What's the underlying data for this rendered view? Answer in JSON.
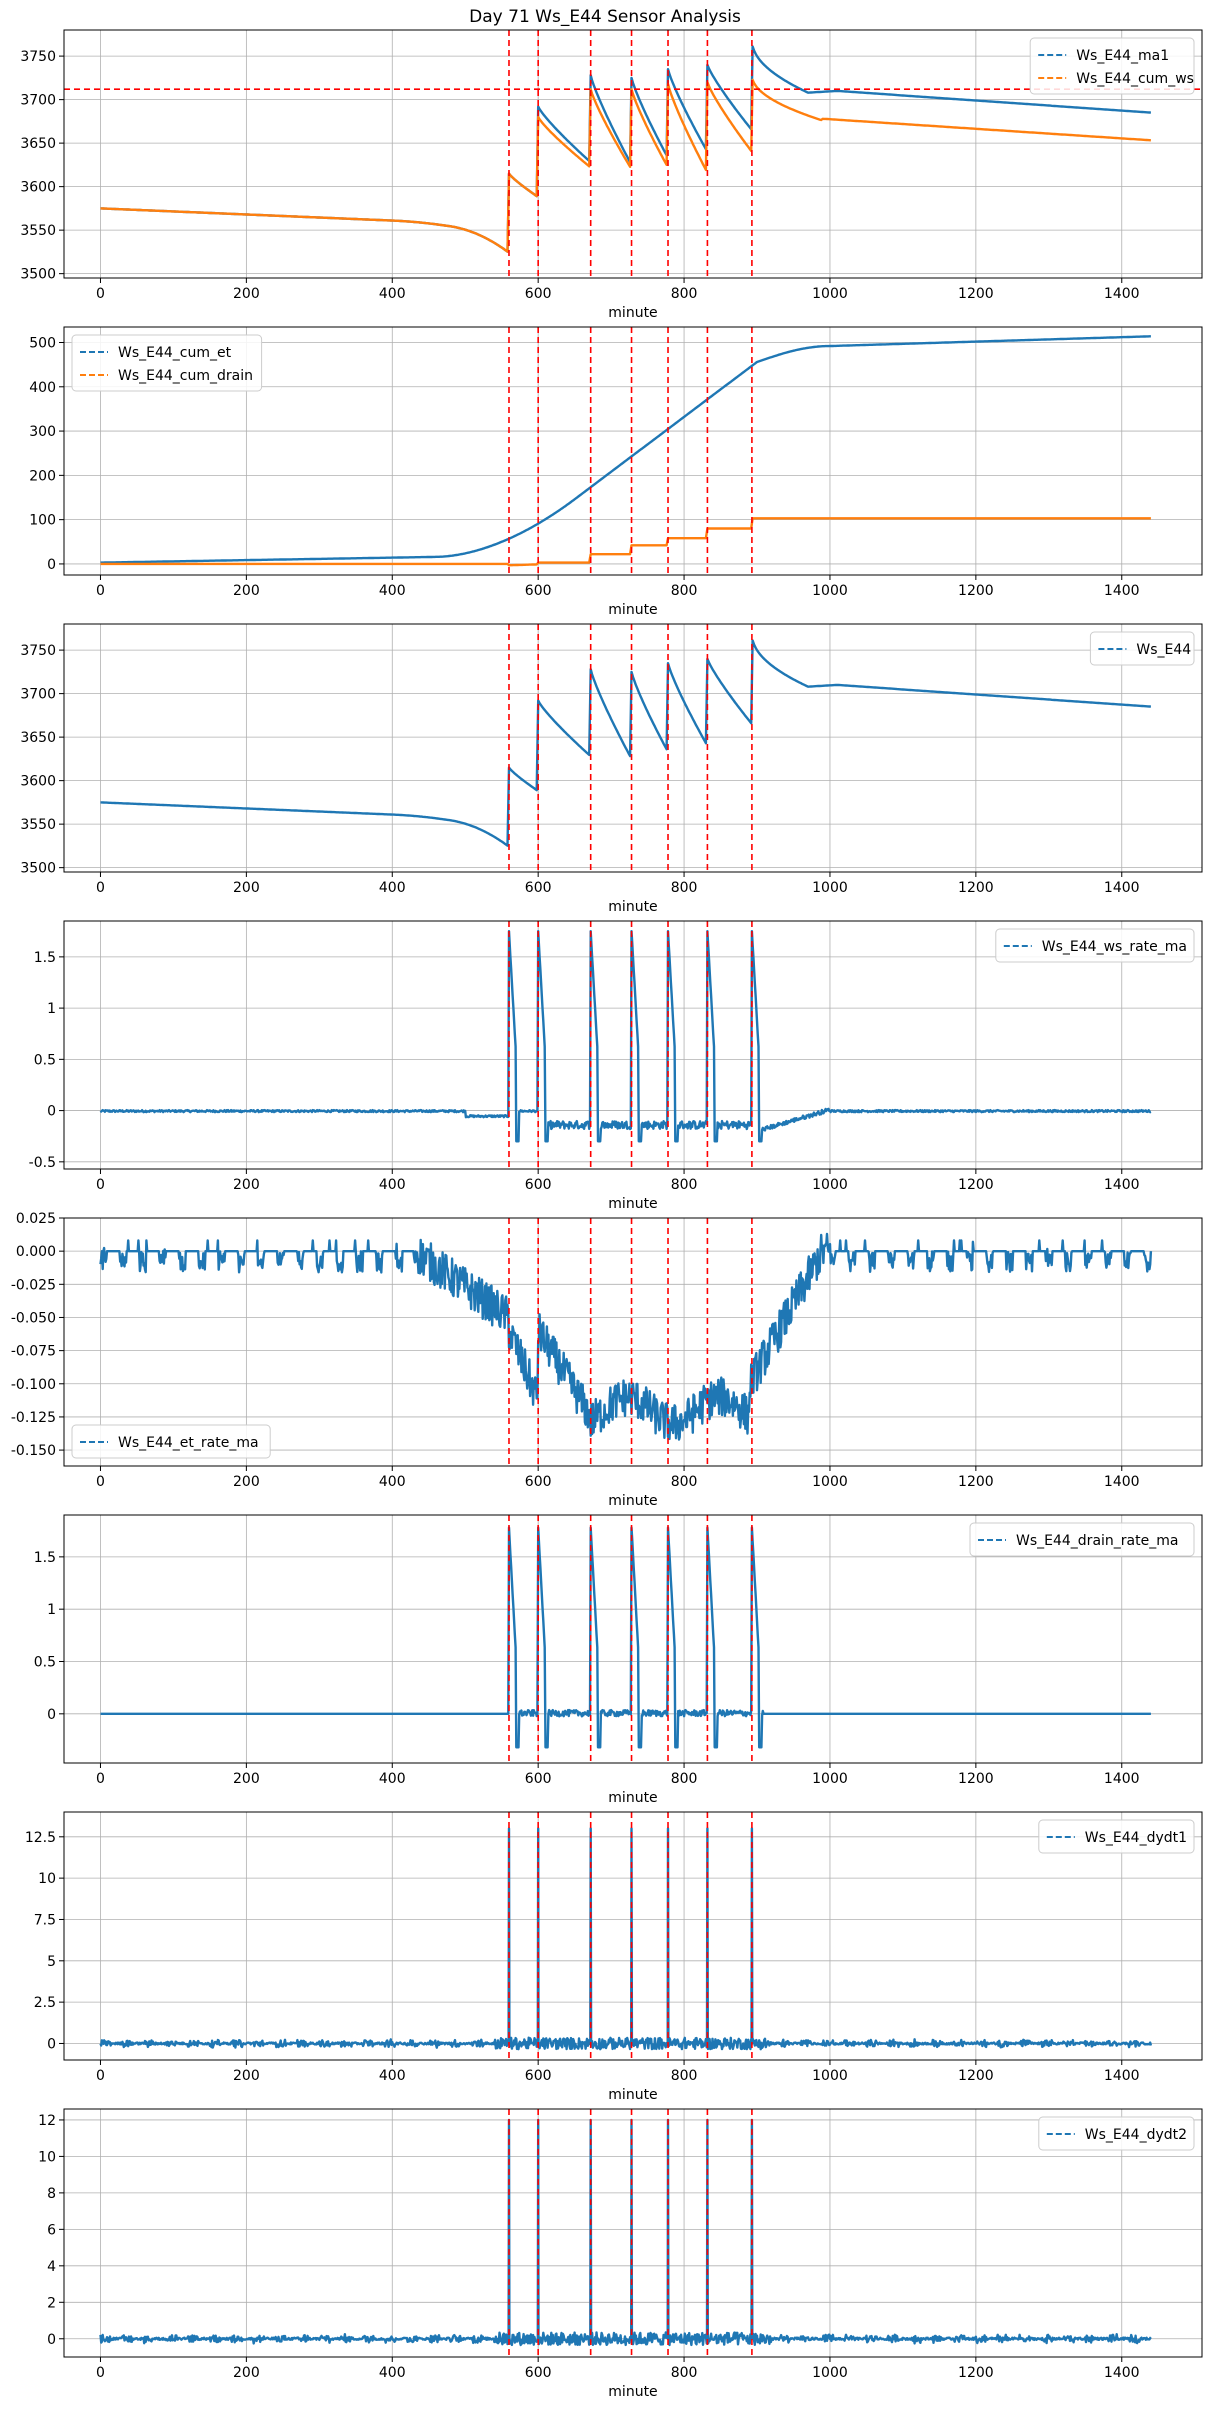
{
  "figure": {
    "title": "Day 71 Ws_E44 Sensor Analysis"
  },
  "colors": {
    "blue": "#1f77b4",
    "orange": "#ff7f0e",
    "red": "#ff0000",
    "grid": "#b0b0b0"
  },
  "events": [
    560,
    600,
    672,
    728,
    778,
    832,
    893
  ],
  "chart_data": [
    {
      "type": "line",
      "xlabel": "minute",
      "xlim": [
        -50,
        1510
      ],
      "xticks": [
        0,
        200,
        400,
        600,
        800,
        1000,
        1200,
        1400
      ],
      "ylim": [
        3495,
        3780
      ],
      "yticks": [
        3500,
        3550,
        3600,
        3650,
        3700,
        3750
      ],
      "hline": 3712,
      "legend_loc": "upper right",
      "series": [
        {
          "name": "Ws_E44_ma1",
          "color": "blue",
          "kind": "ws"
        },
        {
          "name": "Ws_E44_cum_ws",
          "color": "orange",
          "kind": "cumws"
        }
      ]
    },
    {
      "type": "line",
      "xlabel": "minute",
      "xlim": [
        -50,
        1510
      ],
      "xticks": [
        0,
        200,
        400,
        600,
        800,
        1000,
        1200,
        1400
      ],
      "ylim": [
        -25,
        535
      ],
      "yticks": [
        0,
        100,
        200,
        300,
        400,
        500
      ],
      "legend_loc": "upper left",
      "series": [
        {
          "name": "Ws_E44_cum_et",
          "color": "blue",
          "kind": "cumet"
        },
        {
          "name": "Ws_E44_cum_drain",
          "color": "orange",
          "kind": "cumdrain"
        }
      ]
    },
    {
      "type": "line",
      "xlabel": "minute",
      "xlim": [
        -50,
        1510
      ],
      "xticks": [
        0,
        200,
        400,
        600,
        800,
        1000,
        1200,
        1400
      ],
      "ylim": [
        3495,
        3780
      ],
      "yticks": [
        3500,
        3550,
        3600,
        3650,
        3700,
        3750
      ],
      "legend_loc": "upper right",
      "series": [
        {
          "name": "Ws_E44",
          "color": "blue",
          "kind": "ws"
        }
      ]
    },
    {
      "type": "line",
      "xlabel": "minute",
      "xlim": [
        -50,
        1510
      ],
      "xticks": [
        0,
        200,
        400,
        600,
        800,
        1000,
        1200,
        1400
      ],
      "ylim": [
        -0.57,
        1.85
      ],
      "yticks": [
        -0.5,
        0.0,
        0.5,
        1.0,
        1.5
      ],
      "legend_loc": "upper right",
      "series": [
        {
          "name": "Ws_E44_ws_rate_ma",
          "color": "blue",
          "kind": "wsrate"
        }
      ]
    },
    {
      "type": "line",
      "xlabel": "minute",
      "xlim": [
        -50,
        1510
      ],
      "xticks": [
        0,
        200,
        400,
        600,
        800,
        1000,
        1200,
        1400
      ],
      "ylim": [
        -0.162,
        0.025
      ],
      "yticks": [
        -0.15,
        -0.125,
        -0.1,
        -0.075,
        -0.05,
        -0.025,
        0.0,
        0.025
      ],
      "ydecimals": 3,
      "legend_loc": "lower left",
      "series": [
        {
          "name": "Ws_E44_et_rate_ma",
          "color": "blue",
          "kind": "etrate"
        }
      ]
    },
    {
      "type": "line",
      "xlabel": "minute",
      "xlim": [
        -50,
        1510
      ],
      "xticks": [
        0,
        200,
        400,
        600,
        800,
        1000,
        1200,
        1400
      ],
      "ylim": [
        -0.47,
        1.9
      ],
      "yticks": [
        0.0,
        0.5,
        1.0,
        1.5
      ],
      "legend_loc": "upper right",
      "series": [
        {
          "name": "Ws_E44_drain_rate_ma",
          "color": "blue",
          "kind": "drainrate"
        }
      ]
    },
    {
      "type": "line",
      "xlabel": "minute",
      "xlim": [
        -50,
        1510
      ],
      "xticks": [
        0,
        200,
        400,
        600,
        800,
        1000,
        1200,
        1400
      ],
      "ylim": [
        -1.0,
        14.0
      ],
      "yticks": [
        0.0,
        2.5,
        5.0,
        7.5,
        10.0,
        12.5
      ],
      "legend_loc": "upper right",
      "series": [
        {
          "name": "Ws_E44_dydt1",
          "color": "blue",
          "kind": "dydt1"
        }
      ]
    },
    {
      "type": "line",
      "xlabel": "minute",
      "xlim": [
        -50,
        1510
      ],
      "xticks": [
        0,
        200,
        400,
        600,
        800,
        1000,
        1200,
        1400
      ],
      "ylim": [
        -1.0,
        12.6
      ],
      "yticks": [
        0,
        2,
        4,
        6,
        8,
        10,
        12
      ],
      "legend_loc": "upper right",
      "series": [
        {
          "name": "Ws_E44_dydt2",
          "color": "blue",
          "kind": "dydt2"
        }
      ]
    }
  ]
}
